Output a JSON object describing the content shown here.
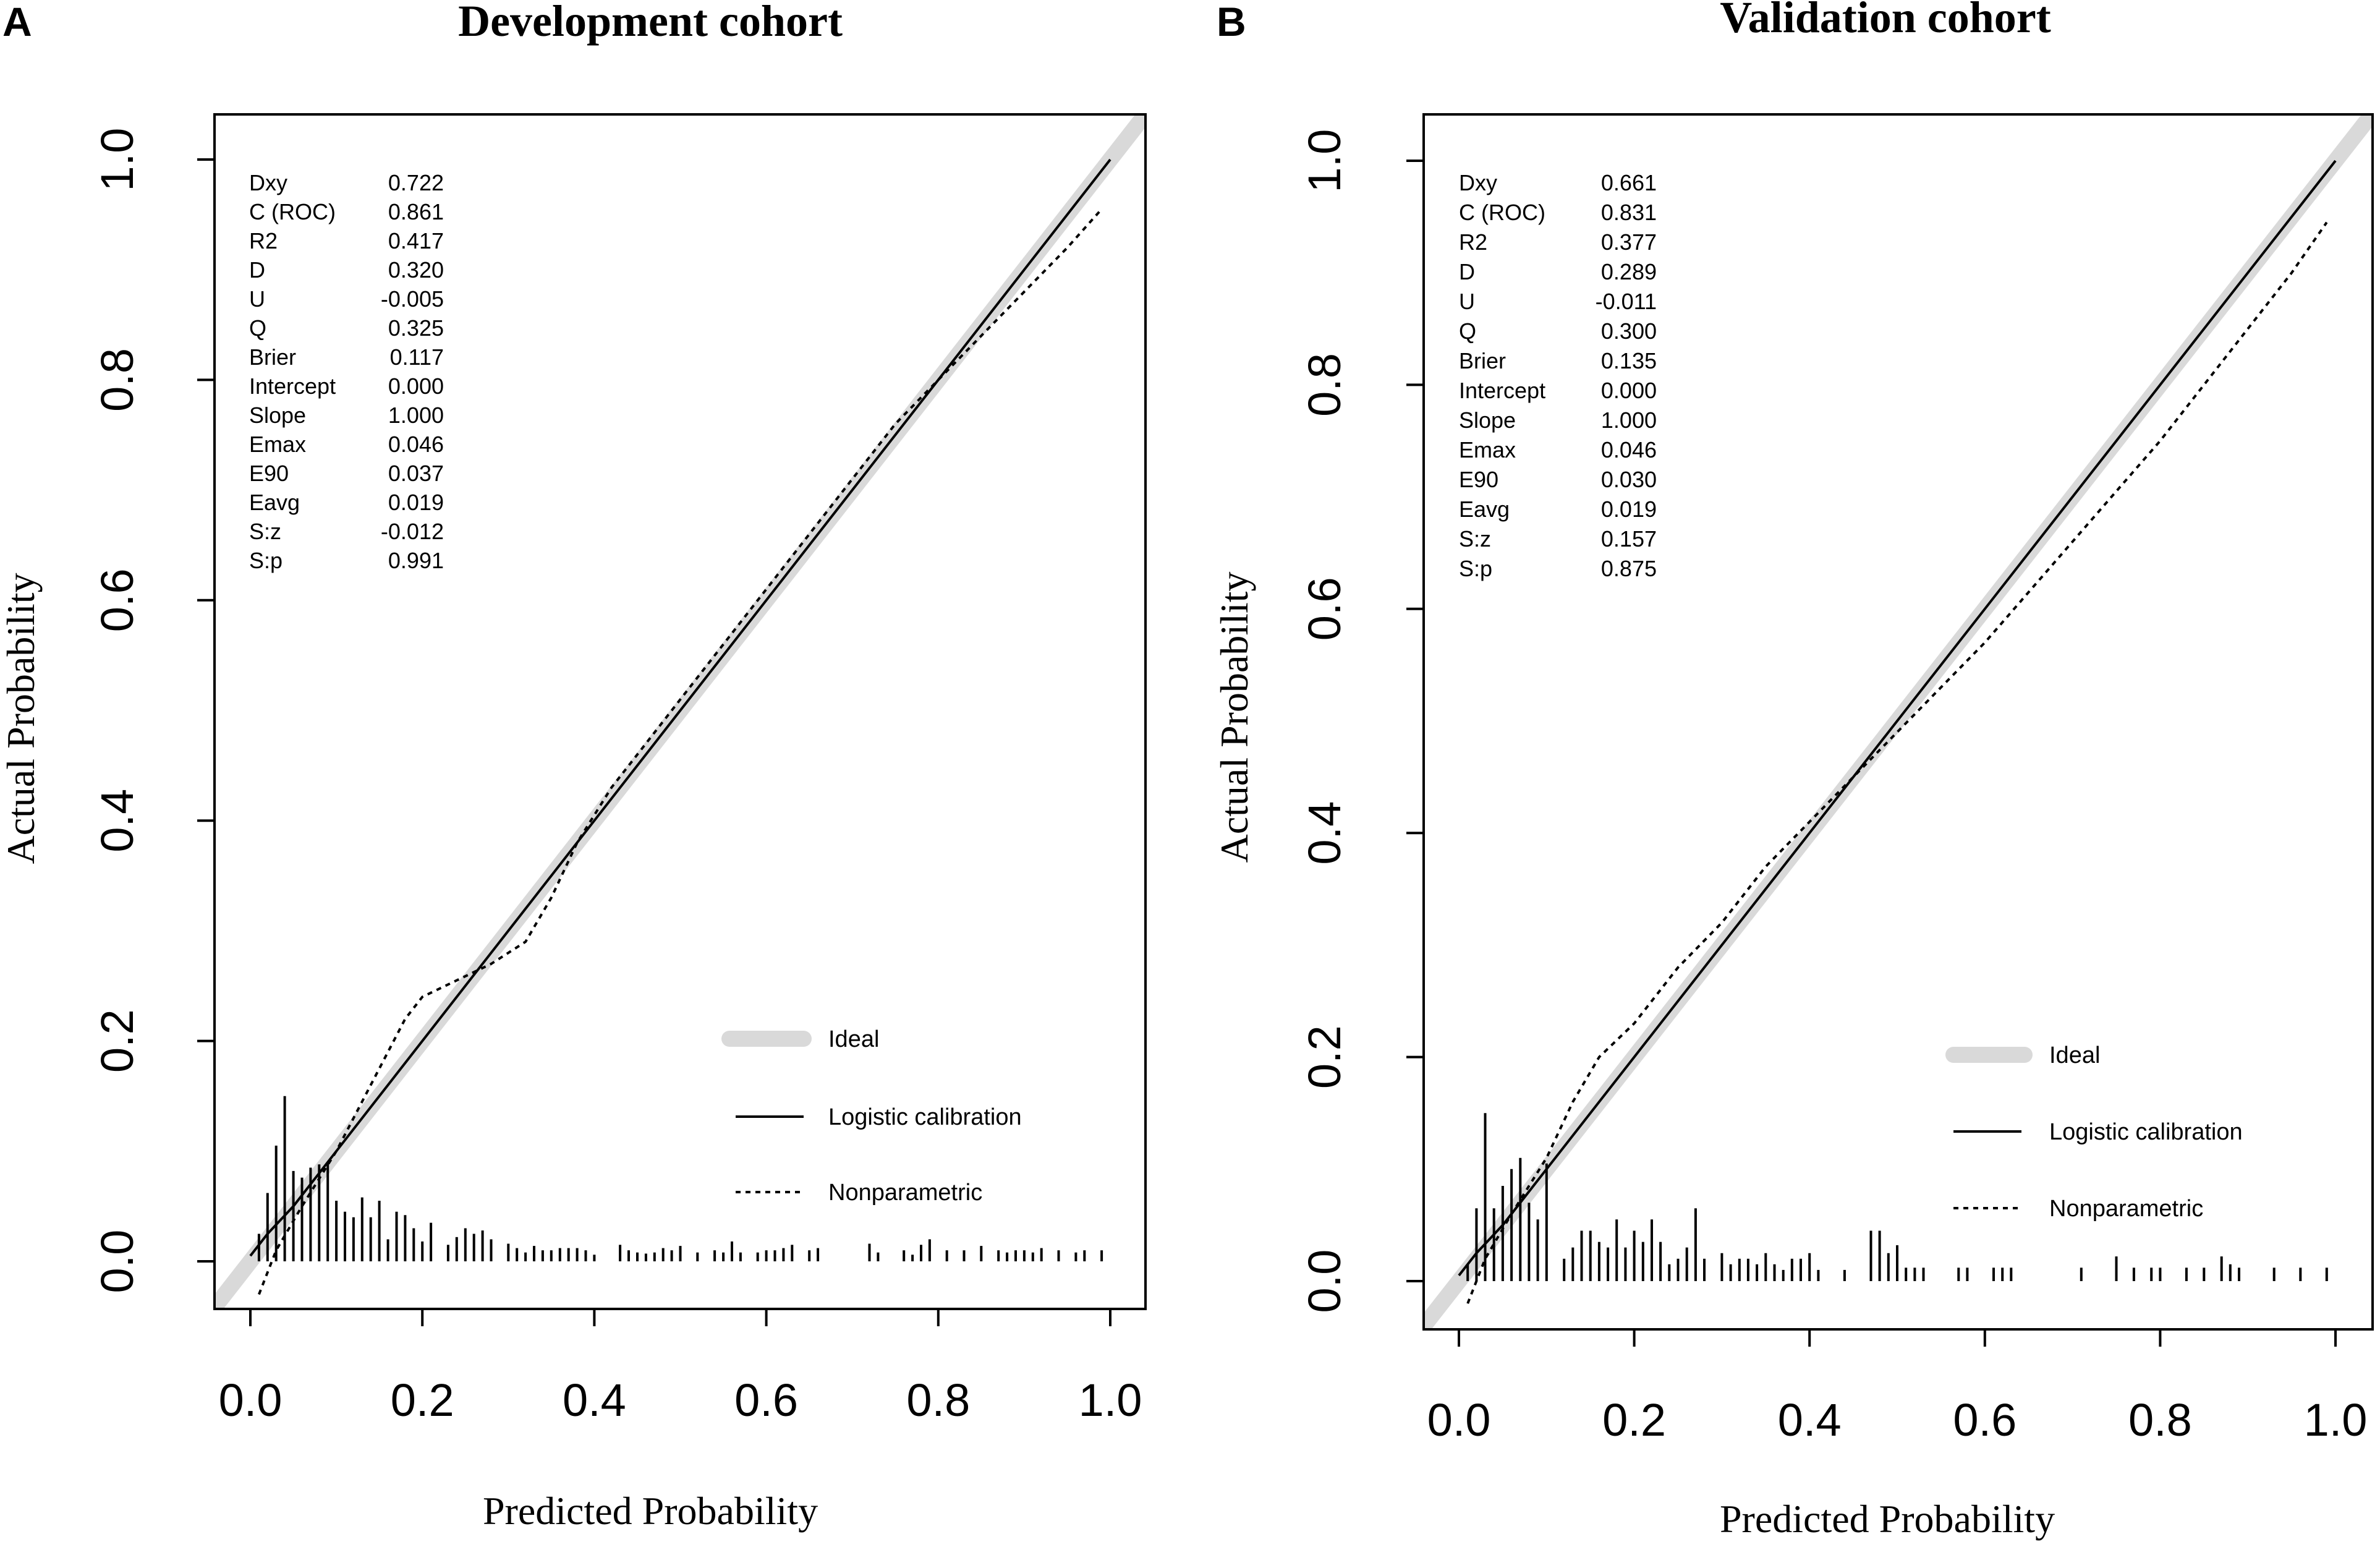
{
  "chart_data": [
    {
      "type": "line",
      "panel": "A",
      "title": "Development cohort",
      "xlabel": "Predicted Probability",
      "ylabel": "Actual Probability",
      "xlim": [
        -0.04,
        1.04
      ],
      "ylim": [
        -0.04,
        1.04
      ],
      "x_ticks": [
        "0.0",
        "0.2",
        "0.4",
        "0.6",
        "0.8",
        "1.0"
      ],
      "y_ticks": [
        "0.0",
        "0.2",
        "0.4",
        "0.6",
        "0.8",
        "1.0"
      ],
      "stats": [
        {
          "label": "Dxy",
          "value": "0.722"
        },
        {
          "label": "C (ROC)",
          "value": "0.861"
        },
        {
          "label": "R2",
          "value": "0.417"
        },
        {
          "label": "D",
          "value": "0.320"
        },
        {
          "label": "U",
          "value": "-0.005"
        },
        {
          "label": "Q",
          "value": "0.325"
        },
        {
          "label": "Brier",
          "value": "0.117"
        },
        {
          "label": "Intercept",
          "value": "0.000"
        },
        {
          "label": "Slope",
          "value": "1.000"
        },
        {
          "label": "Emax",
          "value": "0.046"
        },
        {
          "label": "E90",
          "value": "0.037"
        },
        {
          "label": "Eavg",
          "value": "0.019"
        },
        {
          "label": "S:z",
          "value": "-0.012"
        },
        {
          "label": "S:p",
          "value": "0.991"
        }
      ],
      "legend": {
        "position": "bottom-right",
        "items": [
          "Ideal",
          "Logistic calibration",
          "Nonparametric"
        ]
      },
      "series": [
        {
          "name": "Ideal",
          "style": "thick-gray",
          "x": [
            -0.04,
            1.04
          ],
          "y": [
            -0.04,
            1.04
          ]
        },
        {
          "name": "Logistic calibration",
          "style": "solid",
          "x": [
            0.0,
            0.02,
            0.05,
            0.1,
            0.2,
            0.3,
            0.4,
            0.5,
            0.6,
            0.7,
            0.8,
            0.9,
            1.0
          ],
          "y": [
            0.005,
            0.025,
            0.05,
            0.1,
            0.2,
            0.3,
            0.4,
            0.5,
            0.6,
            0.7,
            0.8,
            0.9,
            1.0
          ]
        },
        {
          "name": "Nonparametric",
          "style": "dotted",
          "x": [
            0.01,
            0.03,
            0.06,
            0.1,
            0.14,
            0.18,
            0.2,
            0.24,
            0.28,
            0.32,
            0.35,
            0.38,
            0.42,
            0.46,
            0.5,
            0.55,
            0.6,
            0.65,
            0.7,
            0.75,
            0.8,
            0.85,
            0.9,
            0.95,
            0.99
          ],
          "y": [
            -0.03,
            0.01,
            0.05,
            0.1,
            0.16,
            0.22,
            0.24,
            0.255,
            0.27,
            0.29,
            0.33,
            0.38,
            0.43,
            0.47,
            0.51,
            0.56,
            0.61,
            0.66,
            0.71,
            0.76,
            0.8,
            0.84,
            0.88,
            0.92,
            0.955
          ]
        }
      ],
      "rug": {
        "x": [
          0.01,
          0.02,
          0.03,
          0.04,
          0.05,
          0.06,
          0.07,
          0.08,
          0.09,
          0.1,
          0.11,
          0.12,
          0.13,
          0.14,
          0.15,
          0.16,
          0.17,
          0.18,
          0.19,
          0.2,
          0.21,
          0.23,
          0.24,
          0.25,
          0.26,
          0.27,
          0.28,
          0.3,
          0.31,
          0.32,
          0.33,
          0.34,
          0.35,
          0.36,
          0.37,
          0.38,
          0.39,
          0.4,
          0.43,
          0.44,
          0.45,
          0.46,
          0.47,
          0.48,
          0.49,
          0.5,
          0.52,
          0.54,
          0.55,
          0.56,
          0.57,
          0.59,
          0.6,
          0.61,
          0.62,
          0.63,
          0.65,
          0.66,
          0.72,
          0.73,
          0.76,
          0.77,
          0.78,
          0.79,
          0.81,
          0.83,
          0.85,
          0.87,
          0.88,
          0.89,
          0.9,
          0.91,
          0.92,
          0.94,
          0.96,
          0.97,
          0.99
        ],
        "y": [
          0.025,
          0.062,
          0.105,
          0.15,
          0.082,
          0.076,
          0.085,
          0.088,
          0.09,
          0.055,
          0.045,
          0.04,
          0.058,
          0.04,
          0.055,
          0.02,
          0.045,
          0.042,
          0.03,
          0.018,
          0.035,
          0.015,
          0.022,
          0.03,
          0.025,
          0.028,
          0.02,
          0.016,
          0.012,
          0.008,
          0.014,
          0.01,
          0.01,
          0.012,
          0.012,
          0.012,
          0.01,
          0.006,
          0.015,
          0.01,
          0.008,
          0.007,
          0.008,
          0.012,
          0.01,
          0.014,
          0.008,
          0.01,
          0.008,
          0.018,
          0.008,
          0.008,
          0.01,
          0.01,
          0.012,
          0.015,
          0.01,
          0.012,
          0.016,
          0.008,
          0.01,
          0.006,
          0.015,
          0.02,
          0.01,
          0.01,
          0.014,
          0.01,
          0.008,
          0.01,
          0.01,
          0.008,
          0.012,
          0.01,
          0.008,
          0.01,
          0.01
        ]
      }
    },
    {
      "type": "line",
      "panel": "B",
      "title": "Validation cohort",
      "xlabel": "Predicted Probability",
      "ylabel": "Actual Probability",
      "xlim": [
        -0.04,
        1.04
      ],
      "ylim": [
        -0.04,
        1.04
      ],
      "x_ticks": [
        "0.0",
        "0.2",
        "0.4",
        "0.6",
        "0.8",
        "1.0"
      ],
      "y_ticks": [
        "0.0",
        "0.2",
        "0.4",
        "0.6",
        "0.8",
        "1.0"
      ],
      "stats": [
        {
          "label": "Dxy",
          "value": "0.661"
        },
        {
          "label": "C (ROC)",
          "value": "0.831"
        },
        {
          "label": "R2",
          "value": "0.377"
        },
        {
          "label": "D",
          "value": "0.289"
        },
        {
          "label": "U",
          "value": "-0.011"
        },
        {
          "label": "Q",
          "value": "0.300"
        },
        {
          "label": "Brier",
          "value": "0.135"
        },
        {
          "label": "Intercept",
          "value": "0.000"
        },
        {
          "label": "Slope",
          "value": "1.000"
        },
        {
          "label": "Emax",
          "value": "0.046"
        },
        {
          "label": "E90",
          "value": "0.030"
        },
        {
          "label": "Eavg",
          "value": "0.019"
        },
        {
          "label": "S:z",
          "value": "0.157"
        },
        {
          "label": "S:p",
          "value": "0.875"
        }
      ],
      "legend": {
        "position": "bottom-right",
        "items": [
          "Ideal",
          "Logistic calibration",
          "Nonparametric"
        ]
      },
      "series": [
        {
          "name": "Ideal",
          "style": "thick-gray",
          "x": [
            -0.04,
            1.04
          ],
          "y": [
            -0.04,
            1.04
          ]
        },
        {
          "name": "Logistic calibration",
          "style": "solid",
          "x": [
            0.0,
            0.02,
            0.05,
            0.1,
            0.2,
            0.3,
            0.4,
            0.5,
            0.6,
            0.7,
            0.8,
            0.9,
            1.0
          ],
          "y": [
            0.005,
            0.025,
            0.05,
            0.1,
            0.2,
            0.3,
            0.4,
            0.5,
            0.6,
            0.7,
            0.8,
            0.9,
            1.0
          ]
        },
        {
          "name": "Nonparametric",
          "style": "dotted",
          "x": [
            0.01,
            0.03,
            0.06,
            0.1,
            0.13,
            0.16,
            0.2,
            0.25,
            0.3,
            0.35,
            0.4,
            0.45,
            0.5,
            0.55,
            0.6,
            0.65,
            0.7,
            0.75,
            0.8,
            0.85,
            0.9,
            0.95,
            0.99
          ],
          "y": [
            -0.02,
            0.02,
            0.06,
            0.11,
            0.16,
            0.2,
            0.23,
            0.28,
            0.32,
            0.37,
            0.41,
            0.45,
            0.49,
            0.53,
            0.57,
            0.615,
            0.66,
            0.705,
            0.75,
            0.8,
            0.85,
            0.9,
            0.945
          ]
        }
      ],
      "rug": {
        "x": [
          0.01,
          0.02,
          0.03,
          0.04,
          0.05,
          0.06,
          0.07,
          0.08,
          0.09,
          0.1,
          0.12,
          0.13,
          0.14,
          0.15,
          0.16,
          0.17,
          0.18,
          0.19,
          0.2,
          0.21,
          0.22,
          0.23,
          0.24,
          0.25,
          0.26,
          0.27,
          0.28,
          0.3,
          0.31,
          0.32,
          0.33,
          0.34,
          0.35,
          0.36,
          0.37,
          0.38,
          0.39,
          0.4,
          0.41,
          0.44,
          0.47,
          0.48,
          0.49,
          0.5,
          0.51,
          0.52,
          0.53,
          0.57,
          0.58,
          0.61,
          0.62,
          0.63,
          0.71,
          0.75,
          0.77,
          0.79,
          0.8,
          0.83,
          0.85,
          0.87,
          0.88,
          0.89,
          0.93,
          0.96,
          0.99
        ],
        "y": [
          0.015,
          0.065,
          0.15,
          0.065,
          0.085,
          0.1,
          0.11,
          0.07,
          0.055,
          0.105,
          0.02,
          0.03,
          0.045,
          0.045,
          0.035,
          0.03,
          0.055,
          0.03,
          0.045,
          0.035,
          0.055,
          0.035,
          0.015,
          0.02,
          0.03,
          0.065,
          0.02,
          0.025,
          0.015,
          0.02,
          0.02,
          0.015,
          0.025,
          0.015,
          0.01,
          0.02,
          0.02,
          0.025,
          0.01,
          0.01,
          0.045,
          0.045,
          0.025,
          0.032,
          0.012,
          0.012,
          0.012,
          0.012,
          0.012,
          0.012,
          0.012,
          0.012,
          0.012,
          0.022,
          0.012,
          0.012,
          0.012,
          0.012,
          0.012,
          0.022,
          0.015,
          0.012,
          0.012,
          0.012,
          0.012
        ]
      }
    }
  ]
}
